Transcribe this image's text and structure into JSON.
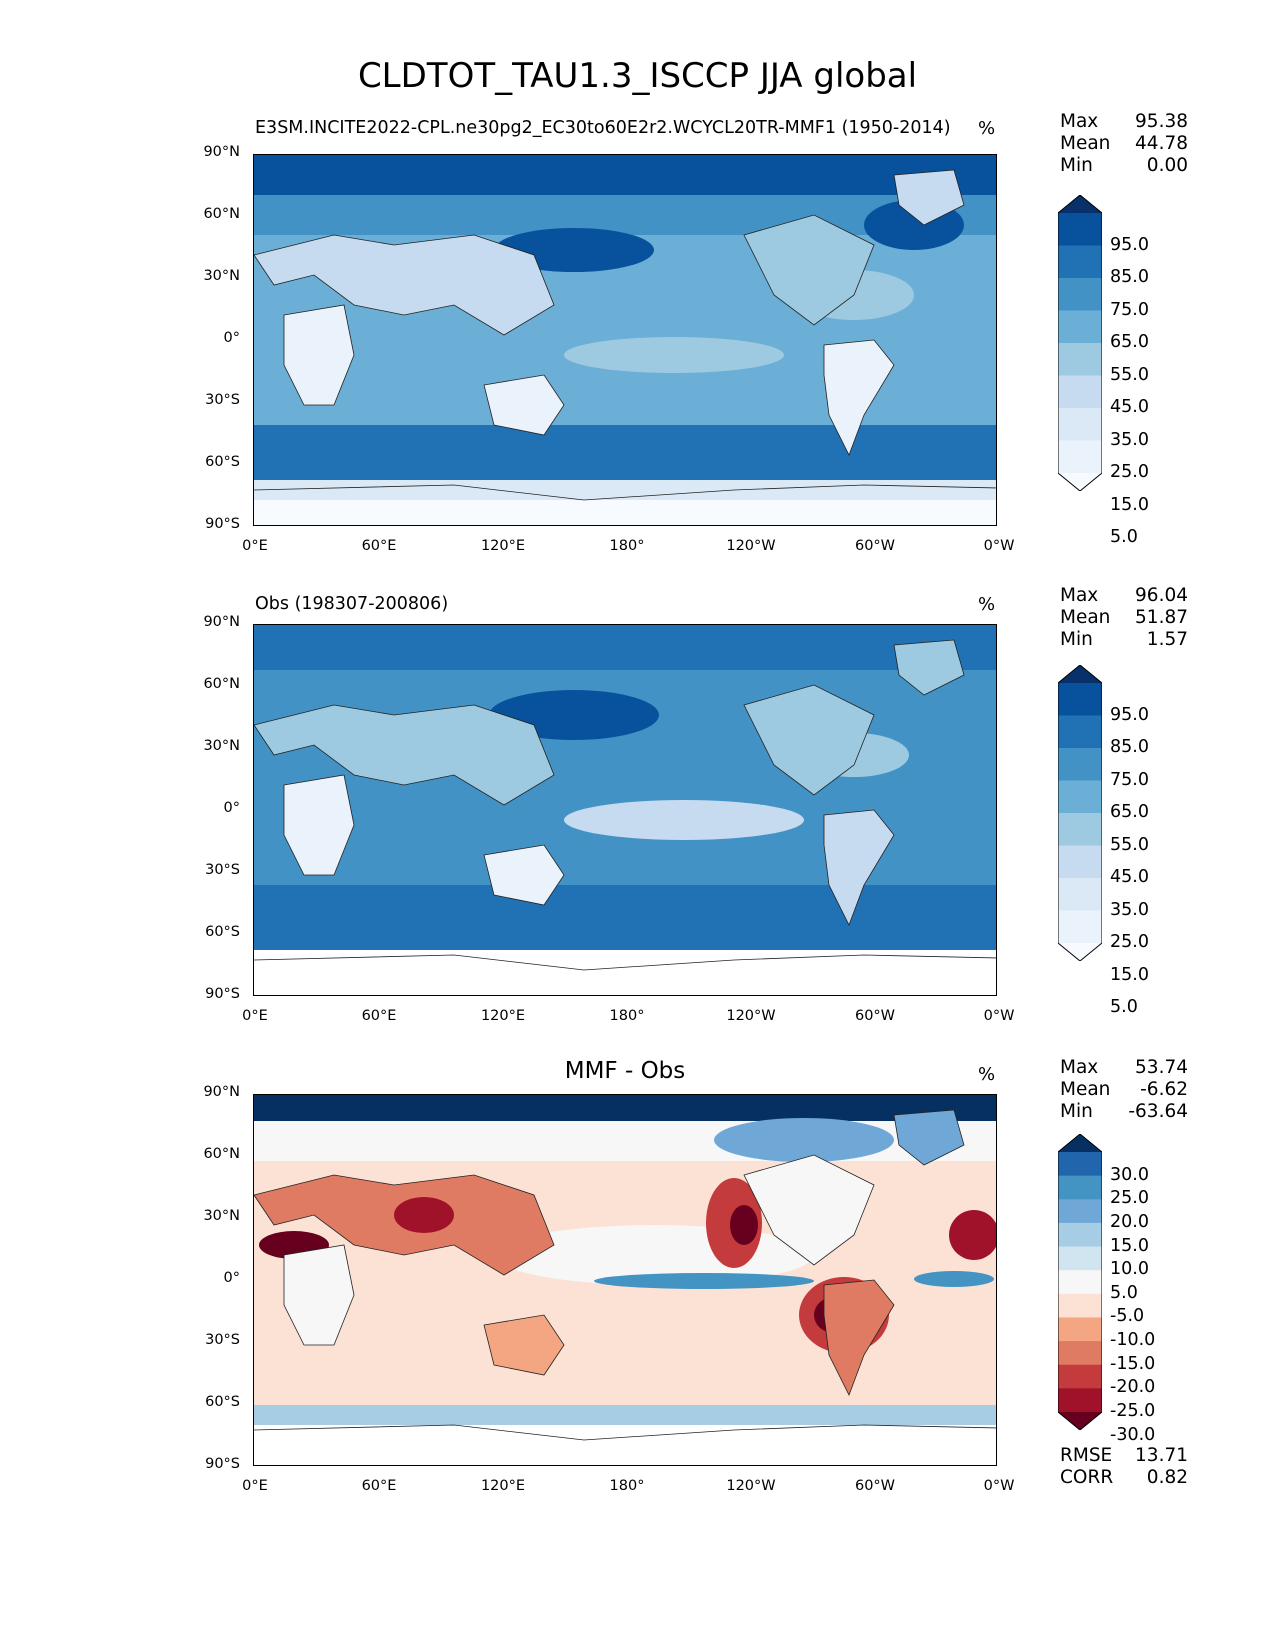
{
  "title": "CLDTOT_TAU1.3_ISCCP JJA global",
  "axes": {
    "lat_ticks": [
      "90°N",
      "60°N",
      "30°N",
      "0°",
      "30°S",
      "60°S",
      "90°S"
    ],
    "lon_ticks": [
      "0°E",
      "60°E",
      "120°E",
      "180°",
      "120°W",
      "60°W",
      "0°W"
    ]
  },
  "panels": [
    {
      "label": "E3SM.INCITE2022-CPL.ne30pg2_EC30to60E2r2.WCYCL20TR-MMF1 (1950-2014)",
      "units": "%",
      "stats": [
        {
          "key": "Max",
          "value": "95.38"
        },
        {
          "key": "Mean",
          "value": "44.78"
        },
        {
          "key": "Min",
          "value": "0.00"
        }
      ],
      "colorbar": {
        "labels": [
          "95.0",
          "85.0",
          "75.0",
          "65.0",
          "55.0",
          "45.0",
          "35.0",
          "25.0",
          "15.0",
          "5.0"
        ],
        "colors": [
          "#08306b",
          "#08519c",
          "#2171b5",
          "#4292c6",
          "#6baed6",
          "#9ecae1",
          "#c6dbef",
          "#dbe9f6",
          "#eaf2fb",
          "#f7fbff"
        ]
      },
      "chart_data": {
        "type": "heatmap",
        "variable": "total cloud fraction (model)",
        "units": "%",
        "summary": {
          "max": 95.38,
          "mean": 44.78,
          "min": 0.0
        },
        "lon_range": [
          0,
          360
        ],
        "lat_range": [
          -90,
          90
        ]
      }
    },
    {
      "label": "Obs (198307-200806)",
      "units": "%",
      "stats": [
        {
          "key": "Max",
          "value": "96.04"
        },
        {
          "key": "Mean",
          "value": "51.87"
        },
        {
          "key": "Min",
          "value": "1.57"
        }
      ],
      "colorbar": {
        "labels": [
          "95.0",
          "85.0",
          "75.0",
          "65.0",
          "55.0",
          "45.0",
          "35.0",
          "25.0",
          "15.0",
          "5.0"
        ],
        "colors": [
          "#08306b",
          "#08519c",
          "#2171b5",
          "#4292c6",
          "#6baed6",
          "#9ecae1",
          "#c6dbef",
          "#dbe9f6",
          "#eaf2fb",
          "#f7fbff"
        ]
      },
      "chart_data": {
        "type": "heatmap",
        "variable": "total cloud fraction (observations)",
        "units": "%",
        "summary": {
          "max": 96.04,
          "mean": 51.87,
          "min": 1.57
        },
        "lon_range": [
          0,
          360
        ],
        "lat_range": [
          -90,
          90
        ]
      }
    },
    {
      "label": "MMF - Obs",
      "units": "%",
      "stats": [
        {
          "key": "Max",
          "value": "53.74"
        },
        {
          "key": "Mean",
          "value": "-6.62"
        },
        {
          "key": "Min",
          "value": "-63.64"
        }
      ],
      "extra_stats": [
        {
          "key": "RMSE",
          "value": "13.71"
        },
        {
          "key": "CORR",
          "value": "0.82"
        }
      ],
      "colorbar": {
        "labels": [
          "30.0",
          "25.0",
          "20.0",
          "15.0",
          "10.0",
          "5.0",
          "-5.0",
          "-10.0",
          "-15.0",
          "-20.0",
          "-25.0",
          "-30.0"
        ],
        "colors": [
          "#053061",
          "#2166ac",
          "#4393c3",
          "#6fa8d6",
          "#a6cde3",
          "#d1e5f0",
          "#f7f7f7",
          "#fbe2d4",
          "#f4a582",
          "#e07b63",
          "#c33b3d",
          "#a0122a",
          "#67001f"
        ]
      },
      "chart_data": {
        "type": "heatmap",
        "variable": "difference MMF - Obs",
        "units": "%",
        "summary": {
          "max": 53.74,
          "mean": -6.62,
          "min": -63.64,
          "rmse": 13.71,
          "corr": 0.82
        },
        "lon_range": [
          0,
          360
        ],
        "lat_range": [
          -90,
          90
        ]
      }
    }
  ]
}
